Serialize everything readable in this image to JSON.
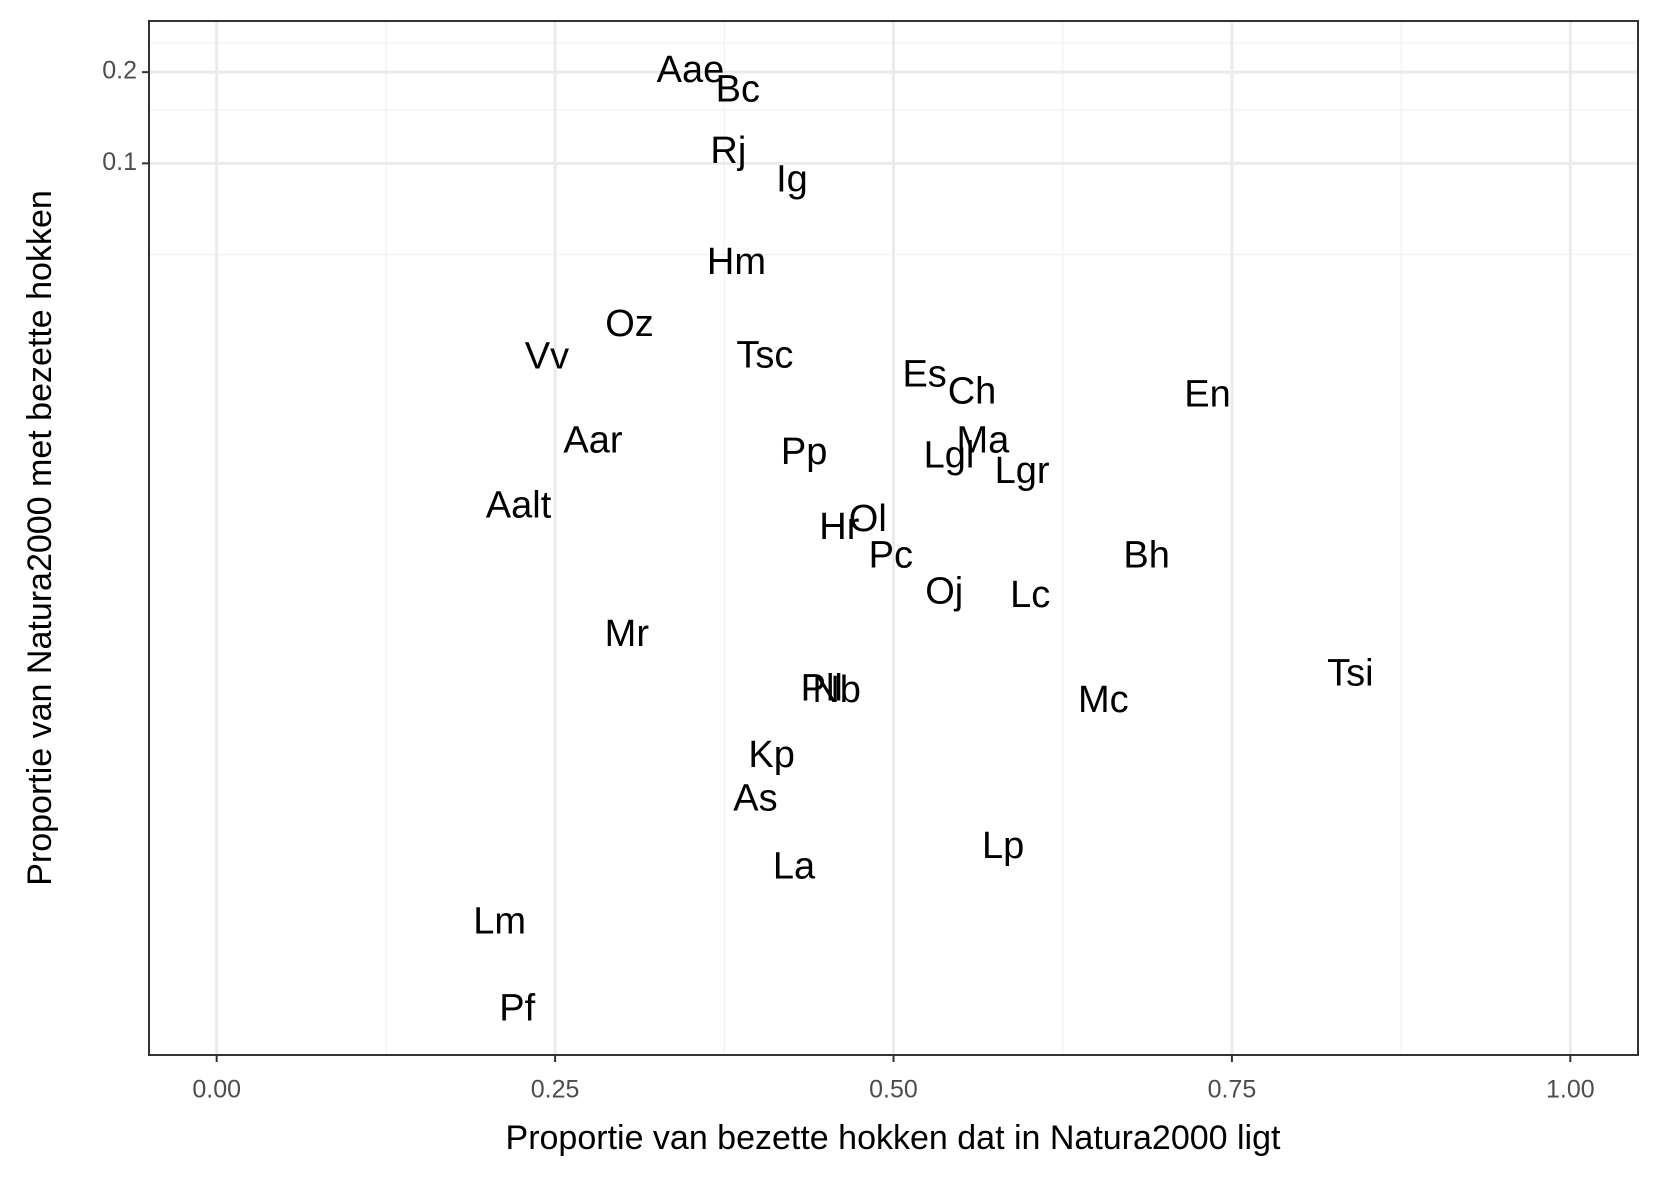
{
  "chart_data": {
    "type": "scatter",
    "x_label": "Proportie van bezette hokken dat in Natura2000 ligt",
    "y_label": "Proportie van Natura2000 met bezette hokken",
    "labels": [
      "Aae",
      "Bc",
      "Rj",
      "Ig",
      "Hm",
      "Oz",
      "Vv",
      "Tsc",
      "Es",
      "Ch",
      "En",
      "Aar",
      "Ma",
      "Pp",
      "Lgl",
      "Lgr",
      "Aalt",
      "Ol",
      "Hr",
      "Bh",
      "Pc",
      "Oj",
      "Lc",
      "Mr",
      "Tsi",
      "Pll",
      "Nb",
      "Mc",
      "Kp",
      "As",
      "Lp",
      "La",
      "Lm",
      "Pf"
    ],
    "x": [
      0.35,
      0.385,
      0.378,
      0.425,
      0.384,
      0.305,
      0.244,
      0.405,
      0.523,
      0.558,
      0.732,
      0.278,
      0.566,
      0.434,
      0.541,
      0.595,
      0.223,
      0.481,
      0.46,
      0.687,
      0.498,
      0.5375,
      0.601,
      0.303,
      0.8375,
      0.447,
      0.458,
      0.655,
      0.41,
      0.398,
      0.581,
      0.4265,
      0.209,
      0.222
    ],
    "values": [
      0.2,
      0.173,
      0.108,
      0.087,
      0.0465,
      0.029,
      0.0227,
      0.0229,
      0.0198,
      0.0174,
      0.017,
      0.012,
      0.012,
      0.011,
      0.0107,
      0.0095,
      0.0073,
      0.0066,
      0.0062,
      0.005,
      0.005,
      0.0038,
      0.0037,
      0.00275,
      0.00204,
      0.00182,
      0.0018,
      0.00167,
      0.0011,
      0.00079,
      0.00055,
      0.00047,
      0.00031,
      0.00016
    ],
    "color": "#000000",
    "log_y": true,
    "grid": true,
    "xlim": [
      -0.05,
      1.05
    ],
    "ylim": [
      0.000114,
      0.295
    ],
    "xticks": [
      {
        "value": 0,
        "label": "0.00"
      },
      0.25,
      {
        "value": 0.5,
        "label": "0.50"
      },
      0.75,
      {
        "value": 1,
        "label": "1.00"
      }
    ],
    "yticks": [
      0.1,
      0.2
    ],
    "xminor": [
      0.125,
      0.375,
      0.625,
      0.875
    ],
    "yminor": [
      0.05,
      0.15,
      0.25
    ]
  }
}
